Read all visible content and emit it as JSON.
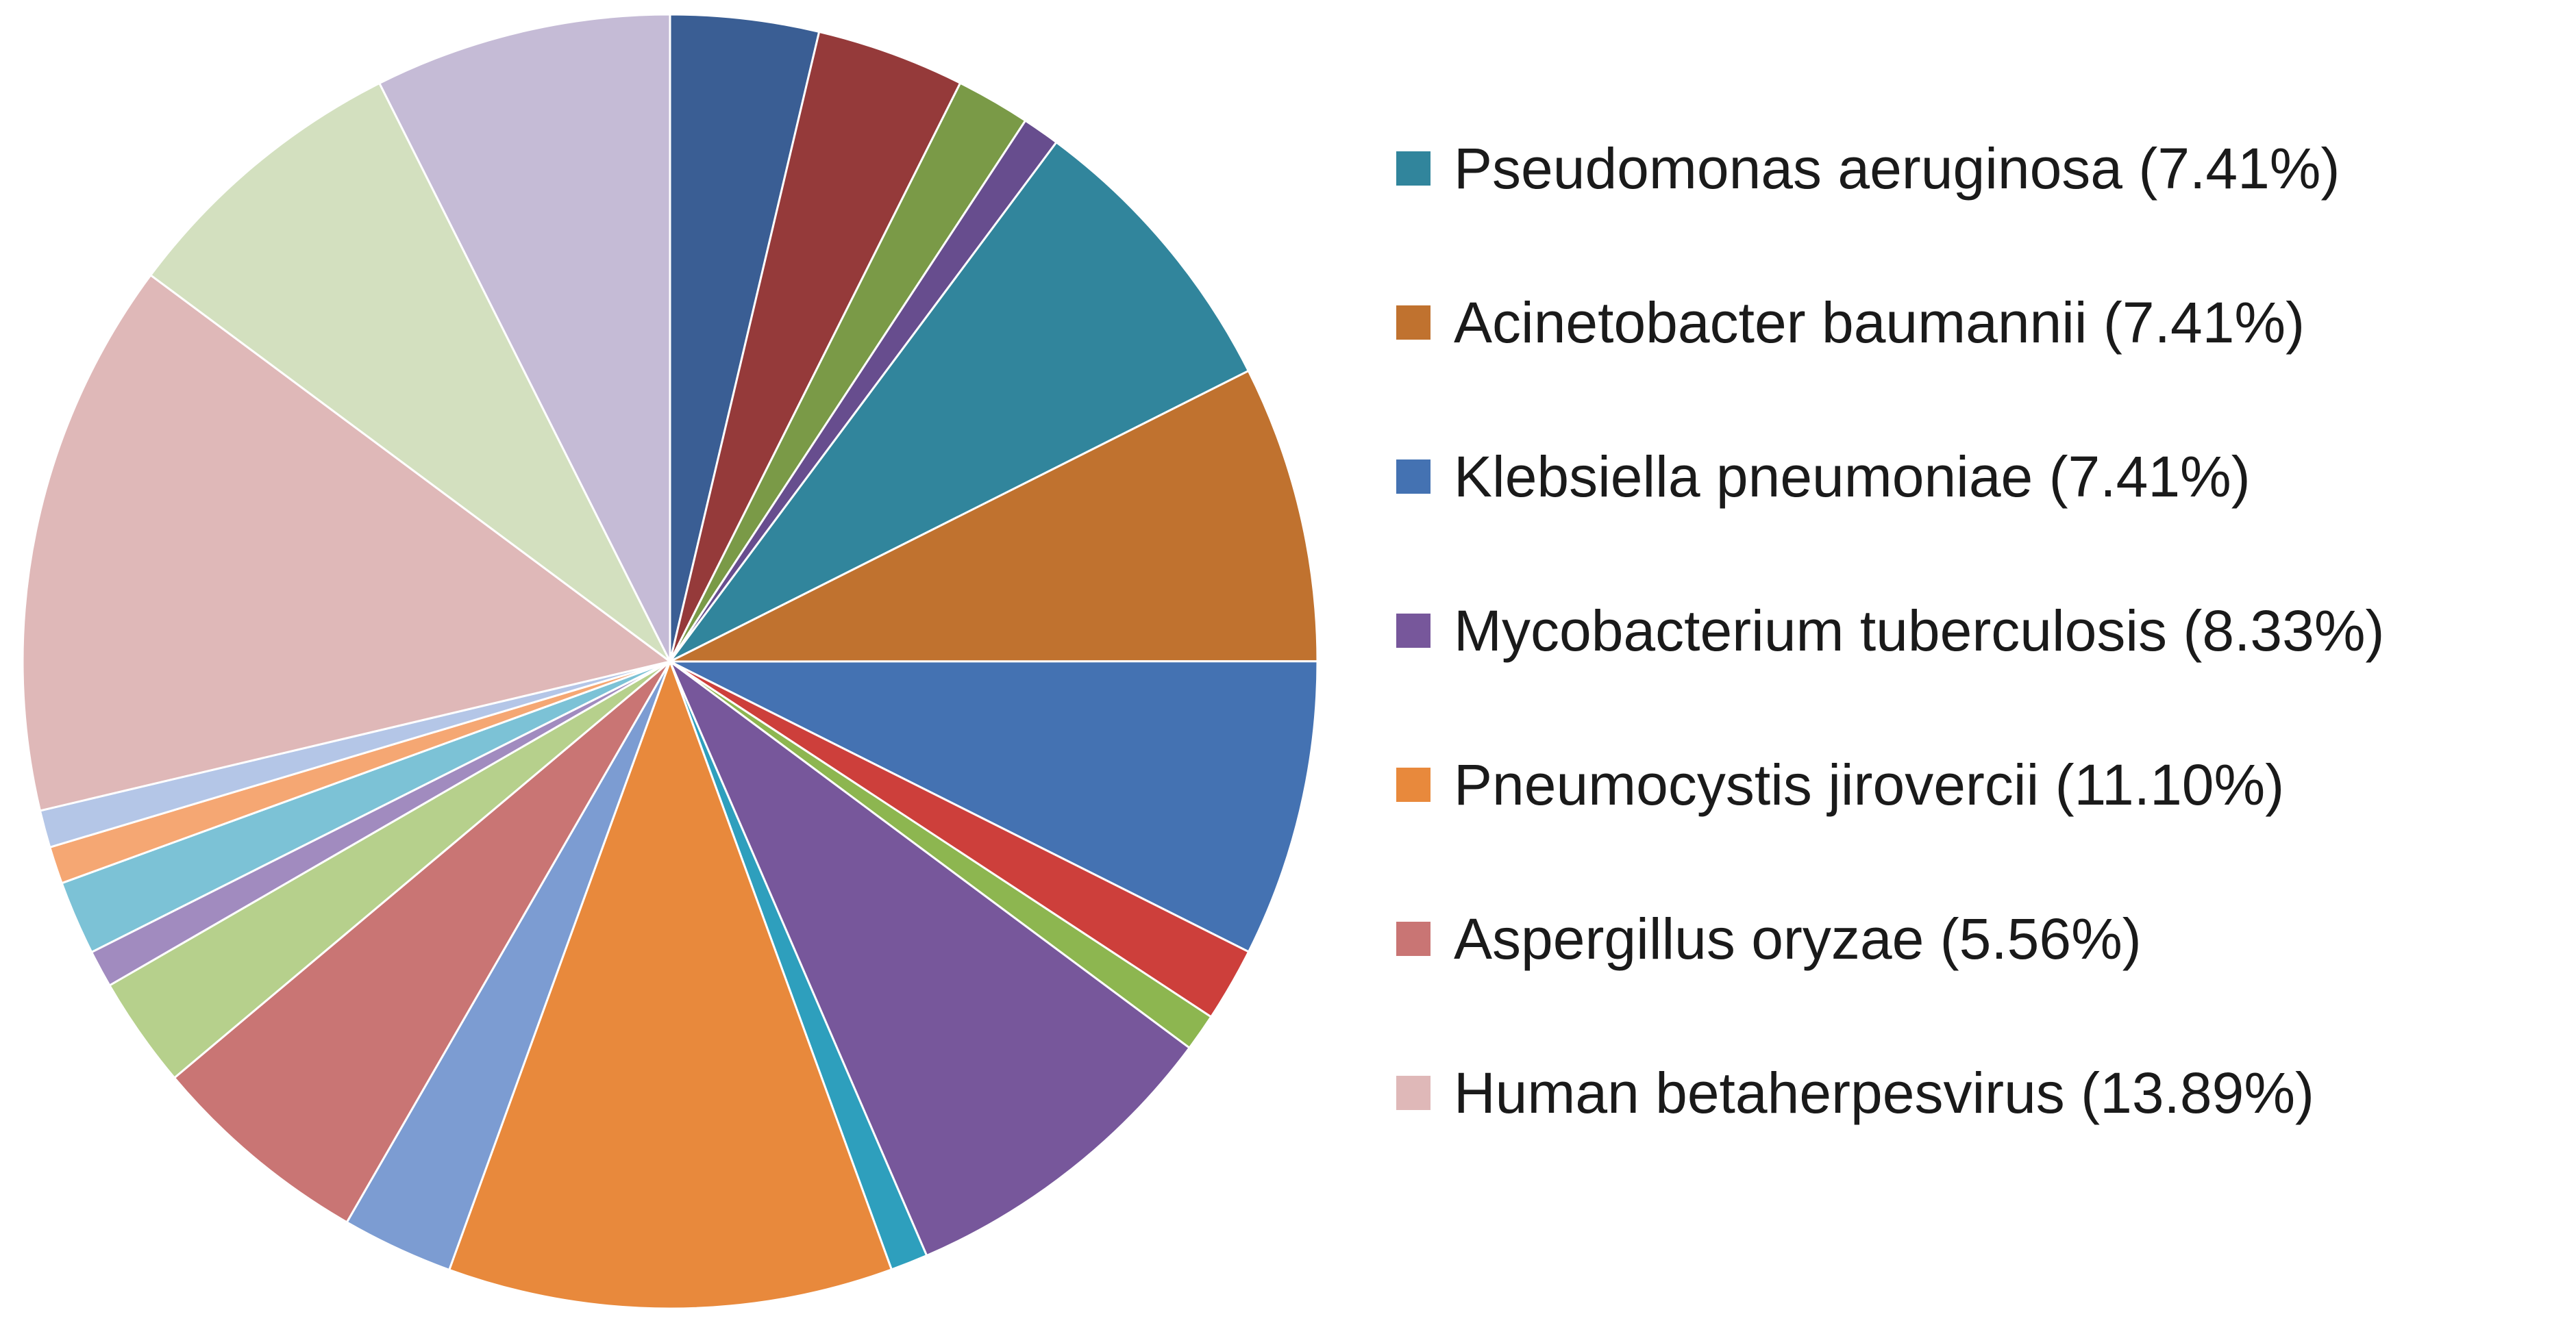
{
  "chart_data": {
    "type": "pie",
    "title": "",
    "legend_position": "right",
    "legend": [
      {
        "label": "Pseudomonas aeruginosa (7.41%)",
        "color": "#31859c"
      },
      {
        "label": "Acinetobacter baumannii (7.41%)",
        "color": "#c0722f"
      },
      {
        "label": "Klebsiella pneumoniae (7.41%)",
        "color": "#4472b2"
      },
      {
        "label": "Mycobacterium tuberculosis (8.33%)",
        "color": "#77579b"
      },
      {
        "label": "Pneumocystis jirovercii (11.10%)",
        "color": "#e8893c"
      },
      {
        "label": "Aspergillus oryzae (5.56%)",
        "color": "#c97574"
      },
      {
        "label": "Human betaherpesvirus (13.89%)",
        "color": "#dfb8b8"
      }
    ],
    "slices": [
      {
        "value": 3.7,
        "color": "#3a5e94"
      },
      {
        "value": 3.7,
        "color": "#953a3a"
      },
      {
        "value": 1.85,
        "color": "#7a9a47"
      },
      {
        "value": 0.93,
        "color": "#674d8e"
      },
      {
        "value": 7.41,
        "color": "#31859c"
      },
      {
        "value": 7.41,
        "color": "#c0722f"
      },
      {
        "value": 7.41,
        "color": "#4472b2"
      },
      {
        "value": 1.85,
        "color": "#cd3f3b"
      },
      {
        "value": 0.93,
        "color": "#8db650"
      },
      {
        "value": 8.33,
        "color": "#77579b"
      },
      {
        "value": 0.93,
        "color": "#2e9fbd"
      },
      {
        "value": 11.1,
        "color": "#e8893c"
      },
      {
        "value": 2.78,
        "color": "#7c9cd2"
      },
      {
        "value": 5.56,
        "color": "#c97574"
      },
      {
        "value": 2.78,
        "color": "#b6d08c"
      },
      {
        "value": 0.93,
        "color": "#a18bbf"
      },
      {
        "value": 1.85,
        "color": "#7cc2d6"
      },
      {
        "value": 0.93,
        "color": "#f5a773"
      },
      {
        "value": 0.93,
        "color": "#b4c6e7"
      },
      {
        "value": 13.89,
        "color": "#dfb8b8"
      },
      {
        "value": 7.41,
        "color": "#d3e0bf"
      },
      {
        "value": 7.41,
        "color": "#c5bbd6"
      }
    ]
  }
}
